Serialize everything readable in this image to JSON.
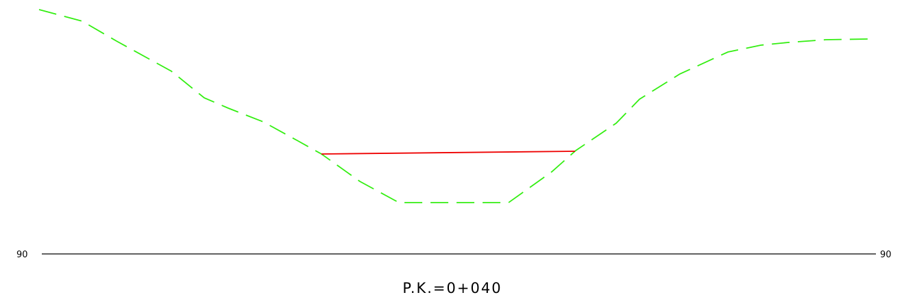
{
  "drawing": {
    "station_label": "P.K.=0+040",
    "datum_label_left": "90",
    "datum_label_right": "90",
    "colors": {
      "terrain": "#33ee11",
      "water_level": "#ee0000",
      "datum_line": "#000000",
      "background": "#ffffff"
    },
    "line_styles": {
      "terrain": "dashed",
      "water_level": "solid",
      "datum_line": "solid"
    }
  }
}
